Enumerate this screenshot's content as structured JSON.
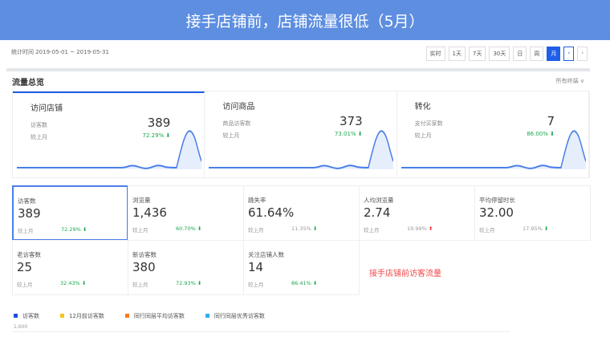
{
  "banner": {
    "title": "接手店铺前，店铺流量很低（5月）"
  },
  "header": {
    "date_range": "统计时间 2019-05-01 ~ 2019-05-31",
    "periods": [
      "实时",
      "1天",
      "7天",
      "30天",
      "日",
      "周",
      "月"
    ],
    "active_period": "月",
    "prev": "‹",
    "next": "›"
  },
  "section": {
    "title": "流量总览",
    "channel": "所有终端 ∨"
  },
  "cards": [
    {
      "title": "访问店铺",
      "label": "访客数",
      "value": "389",
      "compare": "较上月",
      "change": "72.29% ⬇"
    },
    {
      "title": "访问商品",
      "label": "商品访客数",
      "value": "373",
      "compare": "较上月",
      "change": "73.01% ⬇"
    },
    {
      "title": "转化",
      "label": "支付买家数",
      "value": "7",
      "compare": "较上月",
      "change": "86.00% ⬇"
    }
  ],
  "metrics": [
    {
      "name": "访客数",
      "value": "389",
      "compare": "较上月",
      "change": "72.29%",
      "dir": "down",
      "colored": true
    },
    {
      "name": "浏览量",
      "value": "1,436",
      "compare": "较上月",
      "change": "60.70%",
      "dir": "down",
      "colored": true
    },
    {
      "name": "跳失率",
      "value": "61.64%",
      "compare": "较上月",
      "change": "11.35%",
      "dir": "down",
      "colored": false
    },
    {
      "name": "人均浏览量",
      "value": "2.74",
      "compare": "较上月",
      "change": "19.99%",
      "dir": "up",
      "colored": false
    },
    {
      "name": "平均停留时长",
      "value": "32.00",
      "compare": "较上月",
      "change": "17.95%",
      "dir": "down",
      "colored": false
    },
    {
      "name": "老访客数",
      "value": "25",
      "compare": "较上月",
      "change": "32.43%",
      "dir": "down",
      "colored": true
    },
    {
      "name": "新访客数",
      "value": "380",
      "compare": "较上月",
      "change": "72.93%",
      "dir": "down",
      "colored": true
    },
    {
      "name": "关注店铺人数",
      "value": "14",
      "compare": "较上月",
      "change": "86.41%",
      "dir": "down",
      "colored": true
    }
  ],
  "annotation": "接手店铺前访客流量",
  "legend": [
    {
      "label": "访客数",
      "color": "#1f4fd8"
    },
    {
      "label": "12月前访客数",
      "color": "#f5c518"
    },
    {
      "label": "同行同层平均访客数",
      "color": "#f57a28"
    },
    {
      "label": "同行同层优秀访客数",
      "color": "#3aa8f0"
    }
  ],
  "chart": {
    "ytick": "1,600"
  },
  "colors": {
    "accent": "#1f5ee8",
    "down": "#1aa84c",
    "up": "#e33333"
  }
}
